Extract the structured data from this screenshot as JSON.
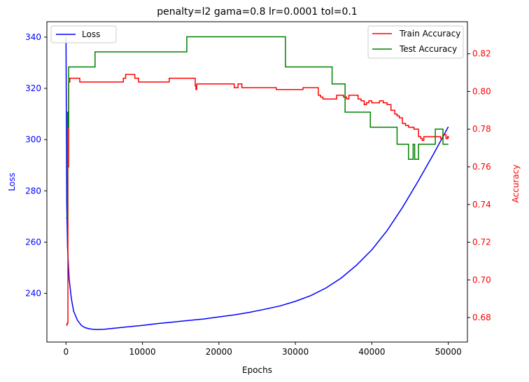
{
  "chart_data": {
    "type": "line",
    "title": "penalty=l2 gama=0.8 lr=0.0001 tol=0.1",
    "xlabel": "Epochs",
    "ylabel_left": "Loss",
    "ylabel_right": "Accuracy",
    "xlim": [
      -2500,
      52500
    ],
    "ylim_left": [
      221,
      346
    ],
    "ylim_right": [
      0.667,
      0.837
    ],
    "xticks": [
      0,
      10000,
      20000,
      30000,
      40000,
      50000
    ],
    "yticks_left": [
      240,
      260,
      280,
      300,
      320,
      340
    ],
    "yticks_right": [
      0.68,
      0.7,
      0.72,
      0.74,
      0.76,
      0.78,
      0.8,
      0.82
    ],
    "grid": false,
    "legend_left": {
      "placement": "upper-left",
      "entries": [
        "Loss"
      ]
    },
    "legend_right": {
      "placement": "upper-right",
      "entries": [
        "Train Accuracy",
        "Test Accuracy"
      ]
    },
    "colors": {
      "loss": "#0000ff",
      "train": "#ff0000",
      "test": "#008000",
      "axis_left": "#0000ff",
      "axis_right": "#ff0000"
    },
    "series": [
      {
        "name": "Loss",
        "axis": "left",
        "step": false,
        "x": [
          0,
          100,
          200,
          400,
          700,
          1000,
          1500,
          2000,
          2500,
          3000,
          3500,
          4000,
          5000,
          6000,
          8000,
          10000,
          12000,
          14000,
          16000,
          18000,
          20000,
          22000,
          24000,
          26000,
          28000,
          30000,
          32000,
          34000,
          36000,
          38000,
          40000,
          42000,
          44000,
          46000,
          48000,
          50000
        ],
        "values": [
          340,
          275,
          258,
          246,
          238,
          233,
          229.5,
          227.5,
          226.6,
          226.2,
          226.0,
          225.9,
          226.0,
          226.3,
          226.9,
          227.5,
          228.2,
          228.8,
          229.4,
          230.0,
          230.8,
          231.6,
          232.6,
          233.8,
          235.1,
          236.9,
          239.1,
          242.1,
          246.0,
          251.0,
          257.0,
          264.5,
          273.5,
          283.5,
          294.0,
          305.0
        ]
      },
      {
        "name": "Train Accuracy",
        "axis": "right",
        "step": true,
        "x": [
          0,
          150,
          250,
          350,
          500,
          1800,
          7500,
          7800,
          8000,
          9000,
          9500,
          13500,
          16900,
          17000,
          17100,
          21500,
          22000,
          22500,
          23000,
          27500,
          31000,
          33000,
          33300,
          33600,
          35400,
          36300,
          36700,
          37000,
          38200,
          38600,
          39000,
          39300,
          39600,
          40000,
          41000,
          41500,
          42000,
          42500,
          43000,
          43300,
          43600,
          44000,
          44400,
          44800,
          45500,
          46100,
          46400,
          46600,
          46800,
          48700,
          49000,
          49300,
          49700,
          49900,
          50000
        ],
        "values": [
          0.676,
          0.677,
          0.76,
          0.805,
          0.807,
          0.805,
          0.807,
          0.809,
          0.809,
          0.807,
          0.805,
          0.807,
          0.803,
          0.801,
          0.804,
          0.804,
          0.802,
          0.804,
          0.802,
          0.801,
          0.802,
          0.798,
          0.797,
          0.796,
          0.798,
          0.797,
          0.796,
          0.798,
          0.796,
          0.795,
          0.793,
          0.794,
          0.795,
          0.794,
          0.795,
          0.794,
          0.793,
          0.79,
          0.788,
          0.787,
          0.786,
          0.783,
          0.782,
          0.781,
          0.78,
          0.776,
          0.775,
          0.774,
          0.776,
          0.776,
          0.775,
          0.777,
          0.775,
          0.776,
          0.775
        ]
      },
      {
        "name": "Test Accuracy",
        "axis": "right",
        "step": true,
        "x": [
          0,
          200,
          300,
          350,
          500,
          3800,
          15800,
          28700,
          34800,
          36500,
          39800,
          43300,
          44800,
          45400,
          45600,
          46100,
          46300,
          48300,
          49300,
          50000
        ],
        "values": [
          0.733,
          0.789,
          0.781,
          0.813,
          0.813,
          0.821,
          0.829,
          0.813,
          0.804,
          0.789,
          0.781,
          0.772,
          0.764,
          0.772,
          0.764,
          0.772,
          0.772,
          0.78,
          0.772,
          0.772
        ]
      }
    ]
  }
}
